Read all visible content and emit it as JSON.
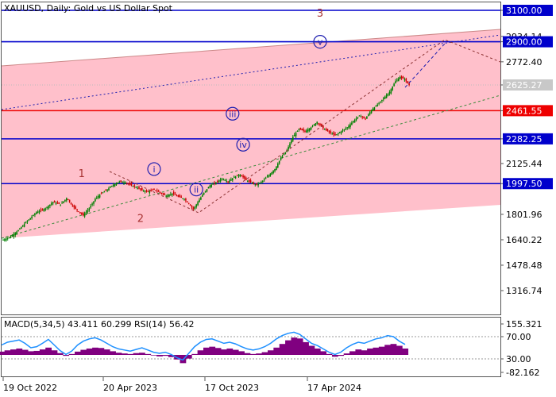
{
  "header": {
    "symbol_title": "XAUUSD, Daily:  Gold vs US Dollar Spot"
  },
  "colors": {
    "channel_fill": "#ffc0cb",
    "blue_level": "#0000cc",
    "red_level": "#ee0000",
    "candle_up": "#008000",
    "candle_down": "#cc0000",
    "macd_hist": "#800080",
    "rsi_line": "#1e90ff",
    "wave_label_primary": "#a83232",
    "wave_label_minor": "#1f1fb0"
  },
  "chart_data": [
    {
      "type": "candlestick",
      "title": "XAUUSD, Daily:  Gold vs US Dollar Spot",
      "ylim": [
        1220,
        3150
      ],
      "y_ticks": [
        {
          "value": 3100.0,
          "label": "3100.00",
          "style": "boxed-blue"
        },
        {
          "value": 2934.14,
          "label": "2934.14",
          "style": "plain"
        },
        {
          "value": 2900.0,
          "label": "2900.00",
          "style": "boxed-blue"
        },
        {
          "value": 2772.4,
          "label": "2772.40",
          "style": "plain"
        },
        {
          "value": 2625.27,
          "label": "2625.27",
          "style": "current"
        },
        {
          "value": 2461.55,
          "label": "2461.55",
          "style": "boxed-red"
        },
        {
          "value": 2282.25,
          "label": "2282.25",
          "style": "boxed-blue"
        },
        {
          "value": 2125.44,
          "label": "2125.44",
          "style": "plain"
        },
        {
          "value": 1997.5,
          "label": "1997.50",
          "style": "boxed-blue"
        },
        {
          "value": 1801.96,
          "label": "1801.96",
          "style": "plain"
        },
        {
          "value": 1640.22,
          "label": "1640.22",
          "style": "plain"
        },
        {
          "value": 1478.48,
          "label": "1478.48",
          "style": "plain"
        },
        {
          "value": 1316.74,
          "label": "1316.74",
          "style": "plain"
        }
      ],
      "x_ticks": [
        "19 Oct 2022",
        "20 Apr 2023",
        "17 Oct 2023",
        "17 Apr 2024"
      ],
      "horizontal_levels": [
        {
          "value": 3100.0,
          "color": "blue"
        },
        {
          "value": 2900.0,
          "color": "blue"
        },
        {
          "value": 2461.55,
          "color": "red"
        },
        {
          "value": 2282.25,
          "color": "blue"
        },
        {
          "value": 1997.5,
          "color": "blue"
        }
      ],
      "price_path": [
        [
          0,
          1640
        ],
        [
          5,
          1660
        ],
        [
          10,
          1700
        ],
        [
          16,
          1760
        ],
        [
          22,
          1815
        ],
        [
          28,
          1840
        ],
        [
          33,
          1880
        ],
        [
          38,
          1865
        ],
        [
          42,
          1905
        ],
        [
          46,
          1855
        ],
        [
          50,
          1820
        ],
        [
          53,
          1795
        ],
        [
          57,
          1840
        ],
        [
          61,
          1900
        ],
        [
          65,
          1935
        ],
        [
          69,
          1960
        ],
        [
          73,
          1990
        ],
        [
          77,
          2010
        ],
        [
          81,
          2005
        ],
        [
          84,
          1990
        ],
        [
          88,
          1975
        ],
        [
          92,
          1955
        ],
        [
          96,
          1945
        ],
        [
          100,
          1960
        ],
        [
          104,
          1940
        ],
        [
          108,
          1920
        ],
        [
          112,
          1935
        ],
        [
          116,
          1915
        ],
        [
          120,
          1900
        ],
        [
          123,
          1870
        ],
        [
          126,
          1835
        ],
        [
          129,
          1880
        ],
        [
          133,
          1940
        ],
        [
          137,
          1985
        ],
        [
          141,
          2005
        ],
        [
          145,
          2030
        ],
        [
          149,
          2010
        ],
        [
          153,
          2040
        ],
        [
          157,
          2055
        ],
        [
          161,
          2020
        ],
        [
          165,
          2000
        ],
        [
          168,
          1990
        ],
        [
          172,
          2015
        ],
        [
          176,
          2050
        ],
        [
          180,
          2090
        ],
        [
          184,
          2160
        ],
        [
          188,
          2210
        ],
        [
          192,
          2295
        ],
        [
          196,
          2345
        ],
        [
          200,
          2330
        ],
        [
          204,
          2355
        ],
        [
          208,
          2390
        ],
        [
          212,
          2350
        ],
        [
          216,
          2325
        ],
        [
          220,
          2305
        ],
        [
          224,
          2330
        ],
        [
          228,
          2355
        ],
        [
          232,
          2395
        ],
        [
          236,
          2430
        ],
        [
          240,
          2410
        ],
        [
          244,
          2465
        ],
        [
          248,
          2500
        ],
        [
          252,
          2540
        ],
        [
          256,
          2580
        ],
        [
          260,
          2650
        ],
        [
          263,
          2675
        ],
        [
          266,
          2660
        ],
        [
          269,
          2625
        ]
      ],
      "indicator_panel": {
        "title": "MACD(5,34,5) 43.411 60.299 RSI(14) 56.42",
        "y_ticks": [
          "155.321",
          "70.00",
          "30.00",
          "-82.162"
        ],
        "macd_hist": [
          18,
          25,
          30,
          35,
          28,
          20,
          22,
          30,
          40,
          25,
          10,
          -5,
          5,
          18,
          28,
          35,
          40,
          38,
          30,
          20,
          12,
          8,
          5,
          10,
          12,
          5,
          -3,
          -8,
          -5,
          -12,
          -25,
          -45,
          -20,
          5,
          25,
          40,
          45,
          38,
          30,
          35,
          28,
          20,
          10,
          5,
          8,
          15,
          25,
          40,
          60,
          80,
          95,
          90,
          70,
          50,
          35,
          20,
          5,
          -10,
          -5,
          8,
          20,
          30,
          25,
          35,
          40,
          45,
          55,
          60,
          50,
          35
        ],
        "rsi": [
          55,
          60,
          62,
          64,
          58,
          50,
          52,
          58,
          65,
          55,
          45,
          38,
          44,
          55,
          62,
          66,
          68,
          64,
          58,
          52,
          48,
          46,
          44,
          47,
          50,
          46,
          42,
          40,
          42,
          38,
          32,
          28,
          40,
          52,
          60,
          65,
          66,
          62,
          58,
          60,
          57,
          52,
          48,
          46,
          48,
          52,
          58,
          66,
          72,
          76,
          78,
          74,
          66,
          58,
          54,
          48,
          42,
          38,
          42,
          50,
          56,
          60,
          58,
          62,
          66,
          68,
          72,
          70,
          62,
          56
        ]
      },
      "wave_labels": [
        {
          "text": "1",
          "x_bar": 52,
          "price": 2060,
          "kind": "primary"
        },
        {
          "text": "2",
          "x_bar": 91,
          "price": 1775,
          "kind": "primary"
        },
        {
          "text": "3",
          "x_bar": 210,
          "price": 3080,
          "kind": "primary"
        },
        {
          "text": "i",
          "x_bar": 100,
          "price": 2090,
          "kind": "minor"
        },
        {
          "text": "ii",
          "x_bar": 128,
          "price": 1960,
          "kind": "minor"
        },
        {
          "text": "iii",
          "x_bar": 152,
          "price": 2442,
          "kind": "minor"
        },
        {
          "text": "iv",
          "x_bar": 159,
          "price": 2245,
          "kind": "minor"
        },
        {
          "text": "v",
          "x_bar": 210,
          "price": 2900,
          "kind": "minor"
        }
      ]
    }
  ]
}
